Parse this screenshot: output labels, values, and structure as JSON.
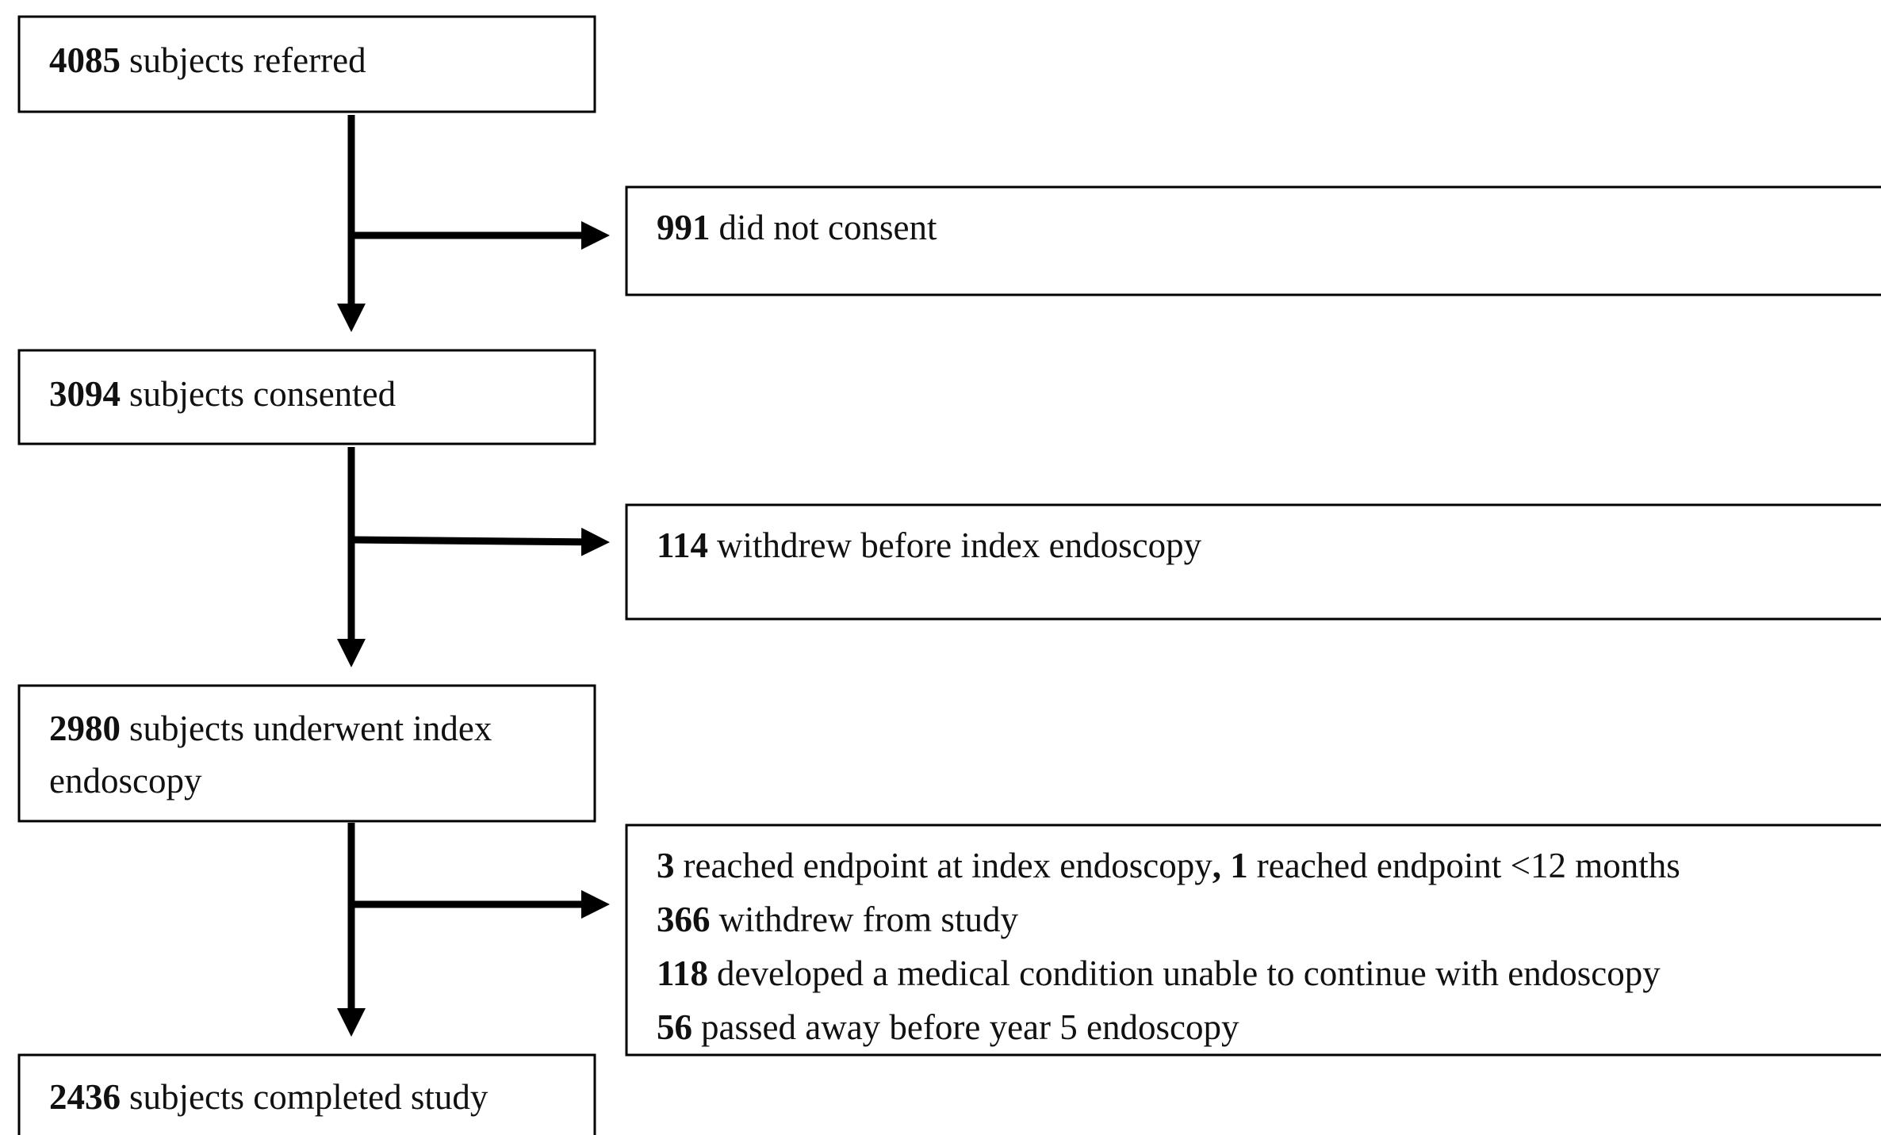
{
  "nodes": [
    {
      "lines": [
        [
          {
            "text": "4085",
            "bold": true
          },
          {
            "text": "subjects referred",
            "bold": false
          }
        ]
      ]
    },
    {
      "lines": [
        [
          {
            "text": "3094",
            "bold": true
          },
          {
            "text": "subjects consented",
            "bold": false
          }
        ]
      ]
    },
    {
      "lines": [
        [
          {
            "text": "2980",
            "bold": true
          },
          {
            "text": "subjects underwent index",
            "bold": false
          }
        ],
        [
          {
            "text": "endoscopy",
            "bold": false
          }
        ]
      ]
    },
    {
      "lines": [
        [
          {
            "text": "2436",
            "bold": true
          },
          {
            "text": "subjects completed study",
            "bold": false
          }
        ]
      ]
    }
  ],
  "excluded": [
    {
      "lines": [
        [
          {
            "text": "991",
            "bold": true
          },
          {
            "text": "did not consent",
            "bold": false
          }
        ]
      ]
    },
    {
      "lines": [
        [
          {
            "text": "114",
            "bold": true
          },
          {
            "text": "withdrew before index endoscopy",
            "bold": false
          }
        ]
      ]
    },
    {
      "lines": [
        [
          {
            "text": "3",
            "bold": true
          },
          {
            "text": "reached endpoint at index endoscopy",
            "bold": false
          },
          {
            "text": ", 1",
            "bold": true
          },
          {
            "text": "reached endpoint <12 months",
            "bold": false
          }
        ],
        [
          {
            "text": "366",
            "bold": true
          },
          {
            "text": "withdrew from study",
            "bold": false
          }
        ],
        [
          {
            "text": "118",
            "bold": true
          },
          {
            "text": "developed a medical condition unable to continue with endoscopy",
            "bold": false
          }
        ],
        [
          {
            "text": "56",
            "bold": true
          },
          {
            "text": "passed away before year 5 endoscopy",
            "bold": false
          }
        ]
      ]
    }
  ]
}
